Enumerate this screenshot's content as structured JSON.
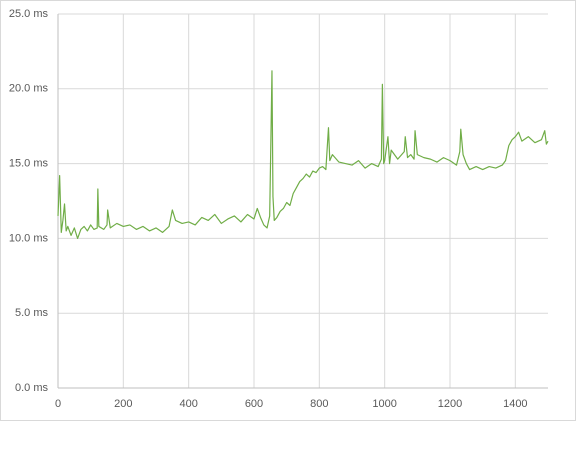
{
  "chart_data": {
    "type": "line",
    "x": [
      0,
      5,
      10,
      15,
      20,
      25,
      30,
      40,
      50,
      60,
      70,
      80,
      90,
      100,
      110,
      120,
      122,
      125,
      140,
      150,
      152,
      160,
      180,
      200,
      220,
      240,
      260,
      280,
      300,
      320,
      340,
      350,
      360,
      380,
      400,
      420,
      440,
      460,
      480,
      500,
      520,
      540,
      560,
      580,
      600,
      610,
      620,
      630,
      640,
      648,
      652,
      655,
      658,
      662,
      670,
      680,
      690,
      700,
      710,
      720,
      730,
      740,
      750,
      760,
      770,
      780,
      790,
      800,
      810,
      820,
      828,
      832,
      840,
      860,
      880,
      900,
      920,
      940,
      960,
      980,
      990,
      993,
      997,
      1000,
      1010,
      1015,
      1020,
      1040,
      1060,
      1063,
      1070,
      1080,
      1090,
      1093,
      1100,
      1120,
      1140,
      1160,
      1180,
      1200,
      1220,
      1230,
      1233,
      1240,
      1250,
      1260,
      1280,
      1300,
      1320,
      1340,
      1360,
      1370,
      1380,
      1390,
      1400,
      1410,
      1420,
      1440,
      1460,
      1480,
      1490,
      1495,
      1500
    ],
    "series": [
      {
        "color": "#70ad47",
        "values": [
          11.5,
          14.2,
          10.4,
          11.2,
          12.3,
          10.5,
          10.8,
          10.2,
          10.7,
          10.0,
          10.6,
          10.8,
          10.5,
          10.9,
          10.6,
          10.7,
          13.3,
          10.8,
          10.6,
          10.9,
          11.9,
          10.7,
          11.0,
          10.8,
          10.9,
          10.6,
          10.8,
          10.5,
          10.7,
          10.4,
          10.8,
          11.9,
          11.2,
          11.0,
          11.1,
          10.9,
          11.4,
          11.2,
          11.6,
          11.0,
          11.3,
          11.5,
          11.1,
          11.6,
          11.3,
          12.0,
          11.4,
          10.9,
          10.7,
          11.5,
          17.0,
          21.2,
          12.8,
          11.2,
          11.4,
          11.8,
          12.0,
          12.4,
          12.2,
          13.0,
          13.4,
          13.8,
          14.0,
          14.3,
          14.1,
          14.5,
          14.4,
          14.7,
          14.8,
          14.6,
          17.4,
          15.2,
          15.6,
          15.1,
          15.0,
          14.9,
          15.2,
          14.7,
          15.0,
          14.8,
          15.3,
          20.3,
          15.0,
          15.2,
          16.8,
          15.0,
          15.9,
          15.3,
          15.8,
          16.8,
          15.4,
          15.6,
          15.3,
          17.2,
          15.6,
          15.4,
          15.3,
          15.1,
          15.4,
          15.2,
          14.9,
          15.8,
          17.3,
          15.6,
          15.0,
          14.6,
          14.8,
          14.6,
          14.8,
          14.7,
          14.9,
          15.2,
          16.2,
          16.6,
          16.8,
          17.1,
          16.5,
          16.8,
          16.4,
          16.6,
          17.2,
          16.3,
          16.5
        ]
      }
    ],
    "xlim": [
      0,
      1500
    ],
    "xticks": [
      0,
      200,
      400,
      600,
      800,
      1000,
      1200,
      1400
    ],
    "ylim": [
      0,
      25
    ],
    "yticks": [
      {
        "value": 0,
        "label": "0.0 ms"
      },
      {
        "value": 5,
        "label": "5.0 ms"
      },
      {
        "value": 10,
        "label": "10.0 ms"
      },
      {
        "value": 15,
        "label": "15.0 ms"
      },
      {
        "value": 20,
        "label": "20.0 ms"
      },
      {
        "value": 25,
        "label": "25.0 ms"
      }
    ],
    "grid": true
  }
}
